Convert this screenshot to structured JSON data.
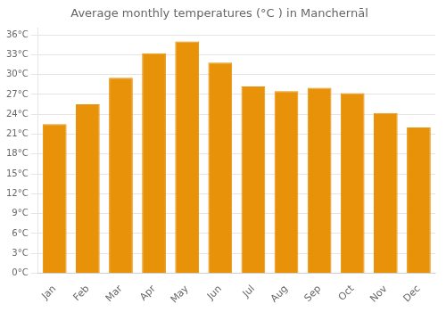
{
  "chart_data": {
    "type": "bar",
    "title": "Average monthly temperatures (°C ) in Manchernāl",
    "categories": [
      "Jan",
      "Feb",
      "Mar",
      "Apr",
      "May",
      "Jun",
      "Jul",
      "Aug",
      "Sep",
      "Oct",
      "Nov",
      "Dec"
    ],
    "values": [
      22.5,
      25.5,
      29.5,
      33.2,
      35.0,
      31.8,
      28.2,
      27.5,
      28.0,
      27.2,
      24.2,
      22.0
    ],
    "color": "#E8920A",
    "ylim": [
      0,
      37
    ],
    "yticks": [
      {
        "value": 0,
        "label": "0°C"
      },
      {
        "value": 3,
        "label": "3°C"
      },
      {
        "value": 6,
        "label": "6°C"
      },
      {
        "value": 9,
        "label": "9°C"
      },
      {
        "value": 12,
        "label": "12°C"
      },
      {
        "value": 15,
        "label": "15°C"
      },
      {
        "value": 18,
        "label": "18°C"
      },
      {
        "value": 21,
        "label": "21°C"
      },
      {
        "value": 24,
        "label": "24°C"
      },
      {
        "value": 27,
        "label": "27°C"
      },
      {
        "value": 30,
        "label": "30°C"
      },
      {
        "value": 33,
        "label": "33°C"
      },
      {
        "value": 36,
        "label": "36°C"
      }
    ],
    "grid": true
  }
}
